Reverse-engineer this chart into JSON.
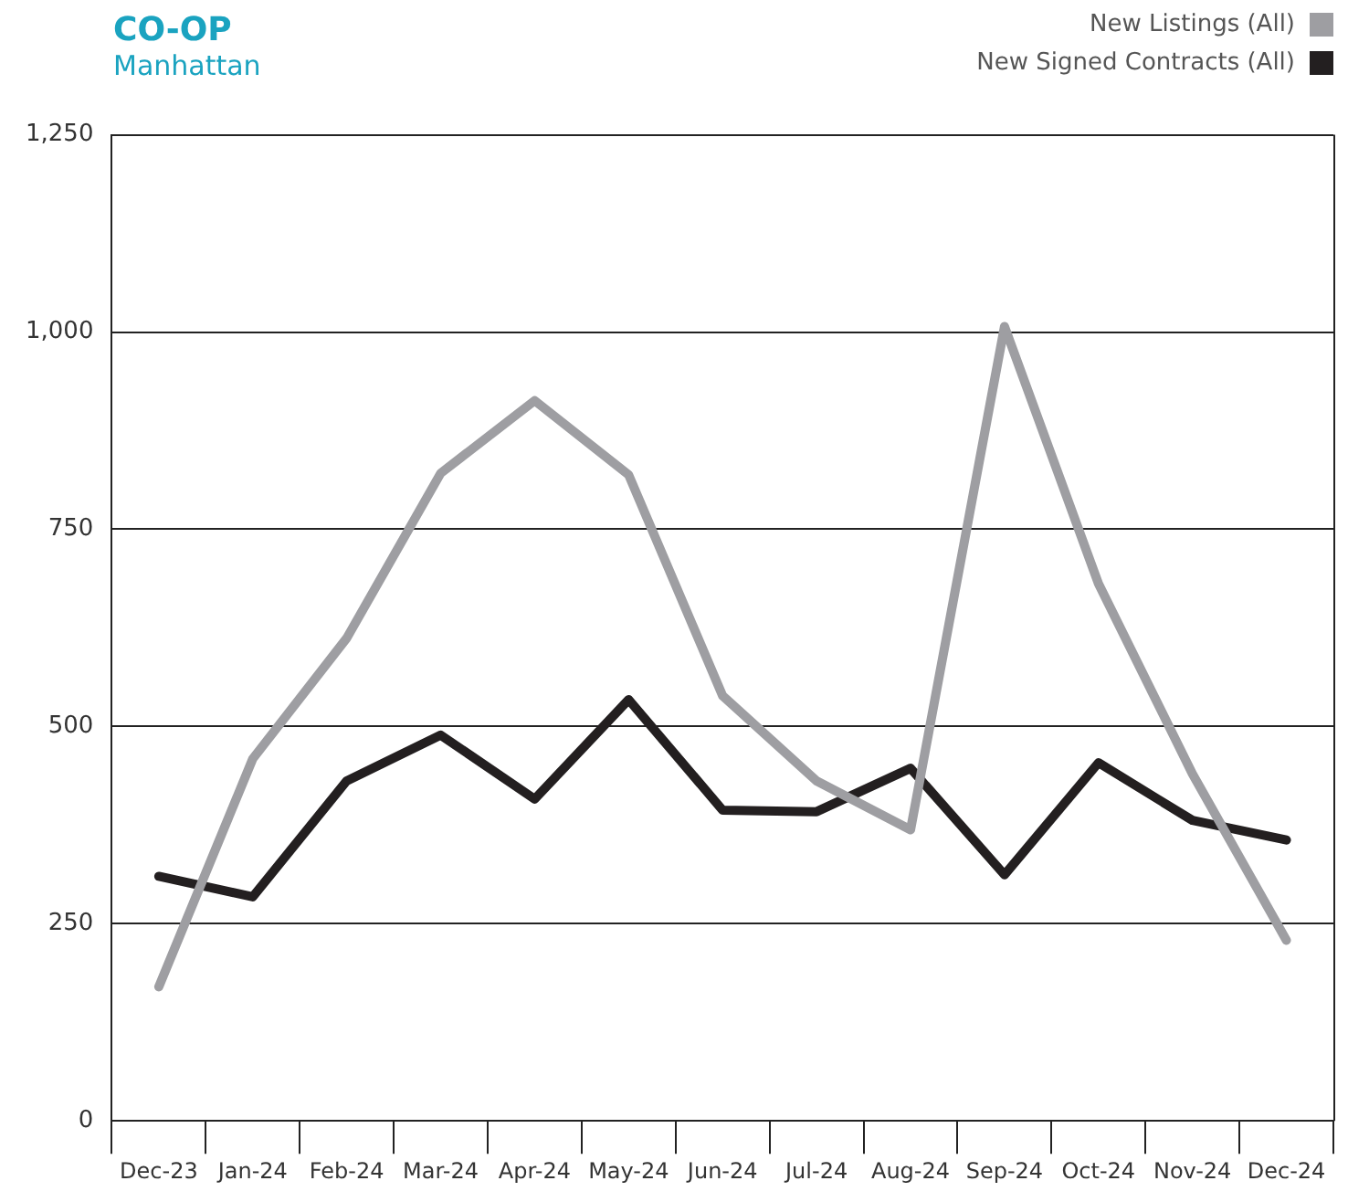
{
  "chart_data": {
    "type": "line",
    "title": "CO-OP",
    "subtitle": "Manhattan",
    "categories": [
      "Dec-23",
      "Jan-24",
      "Feb-24",
      "Mar-24",
      "Apr-24",
      "May-24",
      "Jun-24",
      "Jul-24",
      "Aug-24",
      "Sep-24",
      "Oct-24",
      "Nov-24",
      "Dec-24"
    ],
    "series": [
      {
        "name": "New Listings (All)",
        "color": "#9e9ea2",
        "values": [
          170,
          459,
          612,
          821,
          913,
          819,
          539,
          431,
          369,
          1007,
          681,
          440,
          229
        ]
      },
      {
        "name": "New Signed Contracts (All)",
        "color": "#231f20",
        "values": [
          310,
          284,
          431,
          489,
          408,
          534,
          394,
          392,
          447,
          312,
          454,
          381,
          356
        ]
      }
    ],
    "ylim": [
      0,
      1250
    ],
    "yticks": [
      0,
      250,
      500,
      750,
      {
        "value": 1000,
        "label": "1,000"
      },
      {
        "value": 1250,
        "label": "1,250"
      }
    ],
    "grid": "y",
    "legend": "top right",
    "marker": "none",
    "line_style": "solid"
  }
}
